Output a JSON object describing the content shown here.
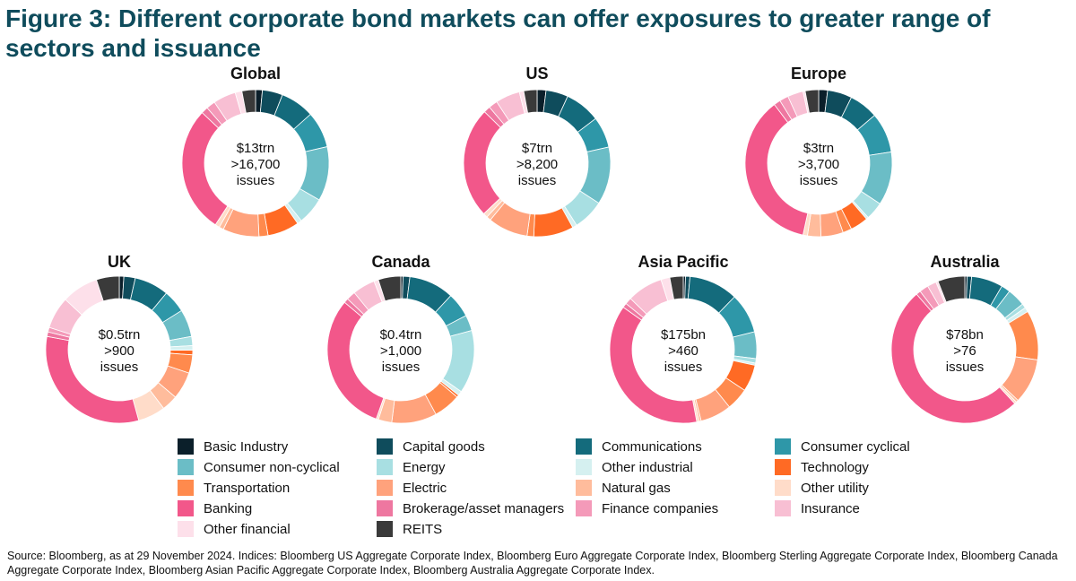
{
  "title": "Figure 3: Different corporate bond markets can offer exposures to greater range of sectors and issuance",
  "source": "Source: Bloomberg, as at 29 November 2024. Indices: Bloomberg US Aggregate Corporate Index, Bloomberg Euro Aggregate Corporate Index, Bloomberg Sterling Aggregate Corporate Index, Bloomberg Canada Aggregate Corporate Index, Bloomberg Asian Pacific Aggregate Corporate Index, Bloomberg Australia Aggregate Corporate Index.",
  "legend": [
    {
      "label": "Basic Industry",
      "color": "#0b1f2a"
    },
    {
      "label": "Capital goods",
      "color": "#0f4c5c"
    },
    {
      "label": "Communications",
      "color": "#146b7c"
    },
    {
      "label": "Consumer cyclical",
      "color": "#2e97a8"
    },
    {
      "label": "Consumer non-cyclical",
      "color": "#6bbdc6"
    },
    {
      "label": "Energy",
      "color": "#a8dfe2"
    },
    {
      "label": "Other industrial",
      "color": "#d5f0f0"
    },
    {
      "label": "Technology",
      "color": "#ff6a24"
    },
    {
      "label": "Transportation",
      "color": "#ff8a4d"
    },
    {
      "label": "Electric",
      "color": "#ffa27c"
    },
    {
      "label": "Natural gas",
      "color": "#ffbc9c"
    },
    {
      "label": "Other utility",
      "color": "#ffdcc9"
    },
    {
      "label": "Banking",
      "color": "#f2578a"
    },
    {
      "label": "Brokerage/asset managers",
      "color": "#ee77a0"
    },
    {
      "label": "Finance companies",
      "color": "#f49ab9"
    },
    {
      "label": "Insurance",
      "color": "#f8bfd3"
    },
    {
      "label": "Other financial",
      "color": "#fde0ea"
    },
    {
      "label": "REITS",
      "color": "#3a3a3a"
    }
  ],
  "chart_data": [
    {
      "type": "pie",
      "title": "Global",
      "center": [
        "$13trn",
        ">16,700",
        "issues"
      ],
      "categories": [
        "Basic Industry",
        "Capital goods",
        "Communications",
        "Consumer cyclical",
        "Consumer non-cyclical",
        "Energy",
        "Other industrial",
        "Technology",
        "Transportation",
        "Electric",
        "Natural gas",
        "Other utility",
        "Banking",
        "Brokerage/asset managers",
        "Finance companies",
        "Insurance",
        "Other financial",
        "REITS"
      ],
      "values": [
        1.5,
        4.5,
        7.5,
        8,
        12,
        6,
        1,
        7,
        2,
        8,
        1,
        1,
        28,
        1.5,
        2,
        5,
        1.5,
        3
      ]
    },
    {
      "type": "pie",
      "title": "US",
      "center": [
        "$7trn",
        ">8,200",
        "issues"
      ],
      "categories": [
        "Basic Industry",
        "Capital goods",
        "Communications",
        "Consumer cyclical",
        "Consumer non-cyclical",
        "Energy",
        "Other industrial",
        "Technology",
        "Transportation",
        "Electric",
        "Natural gas",
        "Other utility",
        "Banking",
        "Brokerage/asset managers",
        "Finance companies",
        "Insurance",
        "Other financial",
        "REITS"
      ],
      "values": [
        2,
        5,
        8,
        7,
        13,
        7,
        1,
        9,
        1.5,
        9,
        1,
        1,
        25,
        1.5,
        2,
        5.5,
        1,
        3
      ]
    },
    {
      "type": "pie",
      "title": "Europe",
      "center": [
        "$3trn",
        ">3,700",
        "issues"
      ],
      "categories": [
        "Basic Industry",
        "Capital goods",
        "Communications",
        "Consumer cyclical",
        "Consumer non-cyclical",
        "Energy",
        "Other industrial",
        "Technology",
        "Transportation",
        "Electric",
        "Natural gas",
        "Other utility",
        "Banking",
        "Brokerage/asset managers",
        "Finance companies",
        "Insurance",
        "Other financial",
        "REITS"
      ],
      "values": [
        2,
        5.5,
        6.5,
        9,
        12,
        4,
        0.5,
        4,
        2,
        5,
        3,
        1,
        37,
        1.5,
        2,
        3.5,
        0.5,
        3
      ]
    },
    {
      "type": "pie",
      "title": "UK",
      "center": [
        "$0.5trn",
        ">900",
        "issues"
      ],
      "categories": [
        "Basic Industry",
        "Capital goods",
        "Communications",
        "Consumer cyclical",
        "Consumer non-cyclical",
        "Energy",
        "Other industrial",
        "Technology",
        "Transportation",
        "Electric",
        "Natural gas",
        "Other utility",
        "Banking",
        "Brokerage/asset managers",
        "Finance companies",
        "Insurance",
        "Other financial",
        "REITS"
      ],
      "values": [
        1,
        2.5,
        7.5,
        5,
        6,
        2,
        1,
        1,
        4,
        6,
        3.5,
        6,
        32,
        1,
        1,
        7,
        8,
        5
      ]
    },
    {
      "type": "pie",
      "title": "Canada",
      "center": [
        "$0.4trn",
        ">1,000",
        "issues"
      ],
      "categories": [
        "Basic Industry",
        "Capital goods",
        "Communications",
        "Consumer cyclical",
        "Consumer non-cyclical",
        "Energy",
        "Other industrial",
        "Technology",
        "Transportation",
        "Electric",
        "Natural gas",
        "Other utility",
        "Banking",
        "Brokerage/asset managers",
        "Finance companies",
        "Insurance",
        "Other financial",
        "REITS"
      ],
      "values": [
        0.5,
        1.5,
        10,
        5.5,
        3.5,
        14,
        1,
        0.5,
        6,
        10,
        3,
        0.5,
        31,
        1,
        2,
        5,
        1,
        5
      ]
    },
    {
      "type": "pie",
      "title": "Asia Pacific",
      "center": [
        "$175bn",
        ">460",
        "issues"
      ],
      "categories": [
        "Basic Industry",
        "Capital goods",
        "Communications",
        "Consumer cyclical",
        "Consumer non-cyclical",
        "Energy",
        "Other industrial",
        "Technology",
        "Transportation",
        "Electric",
        "Natural gas",
        "Other utility",
        "Banking",
        "Brokerage/asset managers",
        "Finance companies",
        "Insurance",
        "Other financial",
        "REITS"
      ],
      "values": [
        0.5,
        1,
        11,
        9,
        6,
        1,
        0.5,
        6,
        5,
        7,
        0.5,
        0.5,
        38.5,
        1,
        1.5,
        8,
        2,
        3
      ]
    },
    {
      "type": "pie",
      "title": "Australia",
      "center": [
        "$78bn",
        ">76",
        "issues"
      ],
      "categories": [
        "Basic Industry",
        "Capital goods",
        "Communications",
        "Consumer cyclical",
        "Consumer non-cyclical",
        "Energy",
        "Other industrial",
        "Technology",
        "Transportation",
        "Electric",
        "Natural gas",
        "Other utility",
        "Banking",
        "Brokerage/asset managers",
        "Finance companies",
        "Insurance",
        "Other financial",
        "REITS"
      ],
      "values": [
        0.5,
        1,
        7,
        2,
        4,
        1,
        1,
        0,
        11,
        10,
        0.5,
        0.5,
        51,
        1,
        2,
        2,
        0.5,
        6
      ]
    }
  ]
}
